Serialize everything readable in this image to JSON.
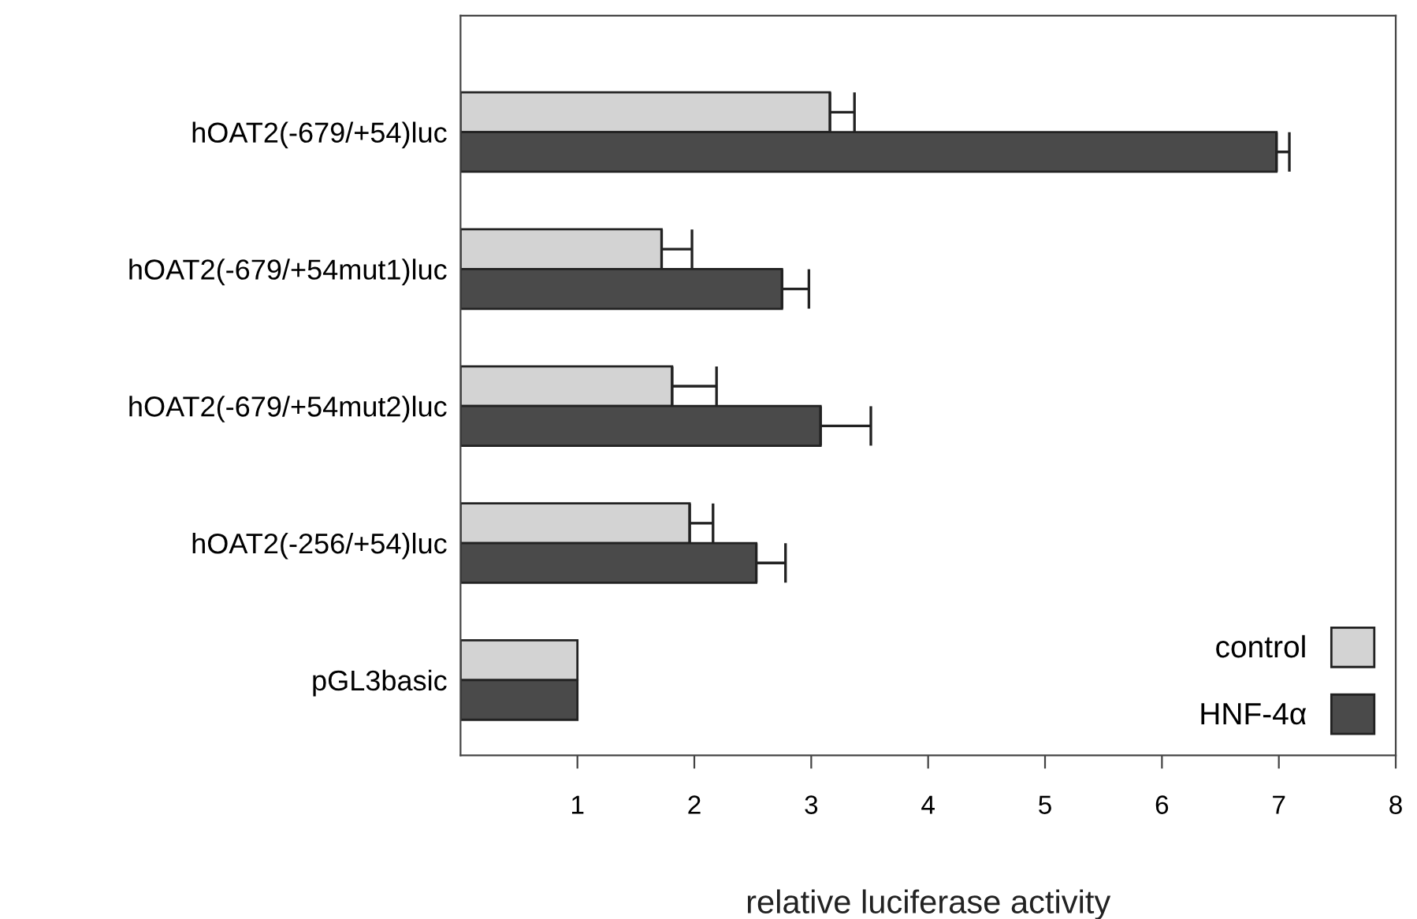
{
  "chart_data": {
    "type": "bar",
    "orientation": "horizontal",
    "xlabel": "relative luciferase activity",
    "categories": [
      "hOAT2(-679/+54)luc",
      "hOAT2(-679/+54mut1)luc",
      "hOAT2(-679/+54mut2)luc",
      "hOAT2(-256/+54)luc",
      "pGL3basic"
    ],
    "series": [
      {
        "name": "control",
        "color": "#d3d3d3",
        "values": [
          3.16,
          1.72,
          1.81,
          1.96,
          1
        ],
        "errors": [
          [
            3.16,
            3.37
          ],
          [
            1.72,
            1.98
          ],
          [
            1.81,
            2.19
          ],
          [
            1.96,
            2.16
          ],
          null
        ]
      },
      {
        "name": "HNF-4α",
        "color": "#4a4a4a",
        "values": [
          6.98,
          2.75,
          3.08,
          2.53,
          1
        ],
        "errors": [
          [
            6.98,
            7.09
          ],
          [
            2.75,
            2.98
          ],
          [
            3.08,
            3.51
          ],
          [
            2.53,
            2.78
          ],
          null
        ]
      }
    ],
    "xlim": [
      0,
      8
    ],
    "xticks": [
      1,
      2,
      3,
      4,
      5,
      6,
      7,
      8
    ],
    "grid": false,
    "legend": "bottom right"
  }
}
